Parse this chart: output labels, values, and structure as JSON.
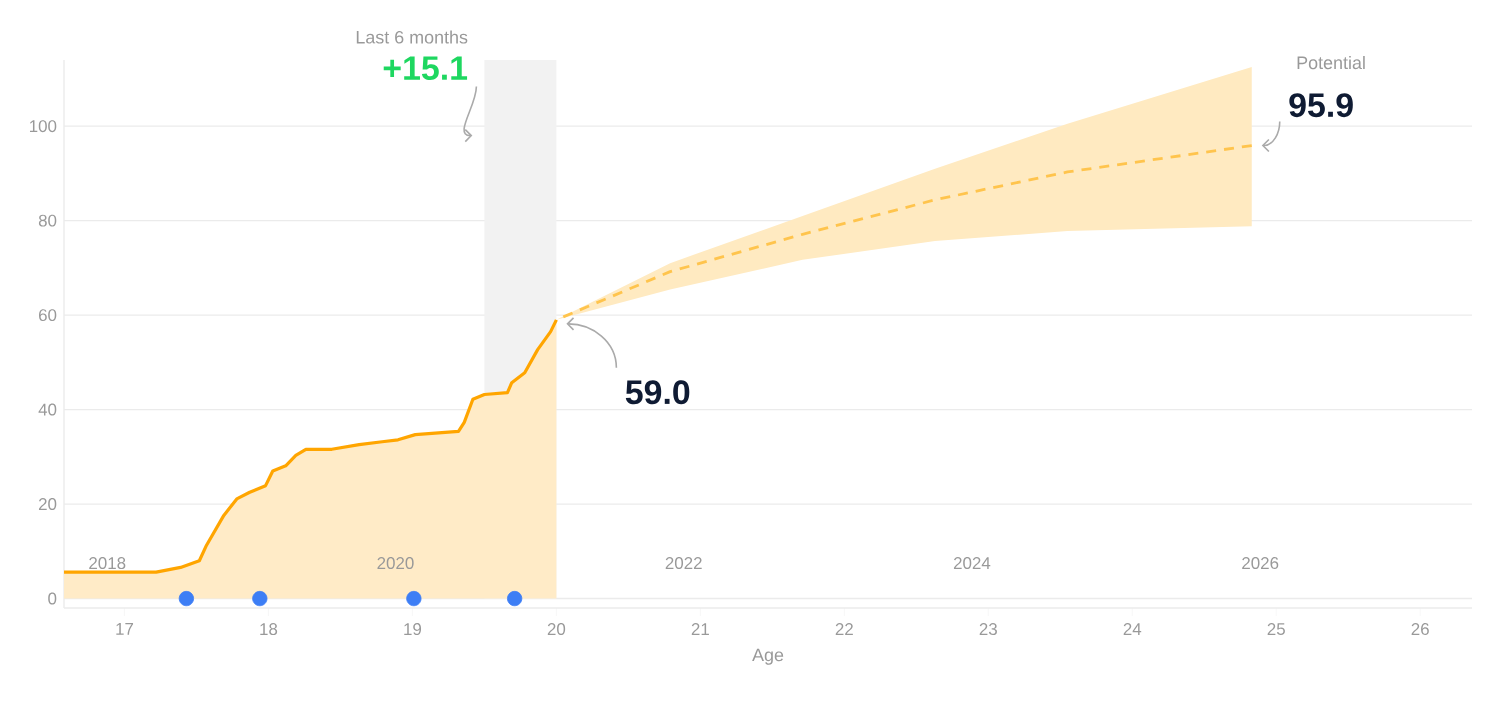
{
  "chart_data": {
    "type": "area",
    "xlabel": "Age",
    "xlim": [
      16.58,
      26.36
    ],
    "xticks": [
      17,
      18,
      19,
      20,
      21,
      22,
      23,
      24,
      25,
      26
    ],
    "ylim": [
      -2,
      114
    ],
    "yticks": [
      0,
      20,
      40,
      60,
      80,
      100
    ],
    "x2lim": [
      2017.7,
      2027.47
    ],
    "x2ticks": [
      2018,
      2020,
      2022,
      2024,
      2026
    ],
    "grid": "y",
    "series": [
      {
        "color": "#ffa500",
        "x": [
          16.58,
          17.22,
          17.39,
          17.52,
          17.57,
          17.69,
          17.78,
          17.87,
          17.98,
          18.03,
          18.12,
          18.19,
          18.26,
          18.44,
          18.63,
          18.79,
          18.9,
          19.02,
          19.32,
          19.36,
          19.42,
          19.5,
          19.66,
          19.69,
          19.78,
          19.87,
          19.96,
          20.0
        ],
        "values": [
          5.6,
          5.6,
          6.6,
          8.0,
          11.3,
          17.6,
          21.1,
          22.5,
          23.9,
          27.0,
          28.1,
          30.3,
          31.6,
          31.6,
          32.6,
          33.2,
          33.6,
          34.7,
          35.4,
          37.3,
          42.2,
          43.2,
          43.6,
          45.7,
          47.8,
          52.7,
          56.5,
          59.0
        ]
      },
      {
        "type": "line",
        "line_style": "dashed",
        "color": "#ffc44d",
        "x": [
          20.0,
          20.79,
          21.71,
          22.63,
          23.55,
          24.83
        ],
        "values": [
          59.0,
          69.2,
          77.1,
          84.4,
          90.3,
          95.9
        ],
        "lower": [
          59.0,
          65.4,
          71.7,
          75.7,
          77.8,
          78.8
        ],
        "upper": [
          59.0,
          71.0,
          81.0,
          91.0,
          100.5,
          112.5
        ]
      },
      {
        "type": "scatter",
        "color": "#3d7ef5",
        "x": [
          17.43,
          17.94,
          19.01,
          19.71
        ],
        "values": [
          0,
          0,
          0,
          0
        ]
      }
    ],
    "bands": [
      {
        "axis": "x",
        "from": 19.5,
        "to": 20.0,
        "label": "Last 6 months",
        "color": "#f2f2f2"
      }
    ],
    "annotations": [
      "+15.1",
      "Potential",
      {
        "text": "95.9",
        "x": 24.83,
        "y": 95.9
      },
      {
        "text": "59.0",
        "x": 20.0,
        "y": 59.0
      }
    ]
  }
}
